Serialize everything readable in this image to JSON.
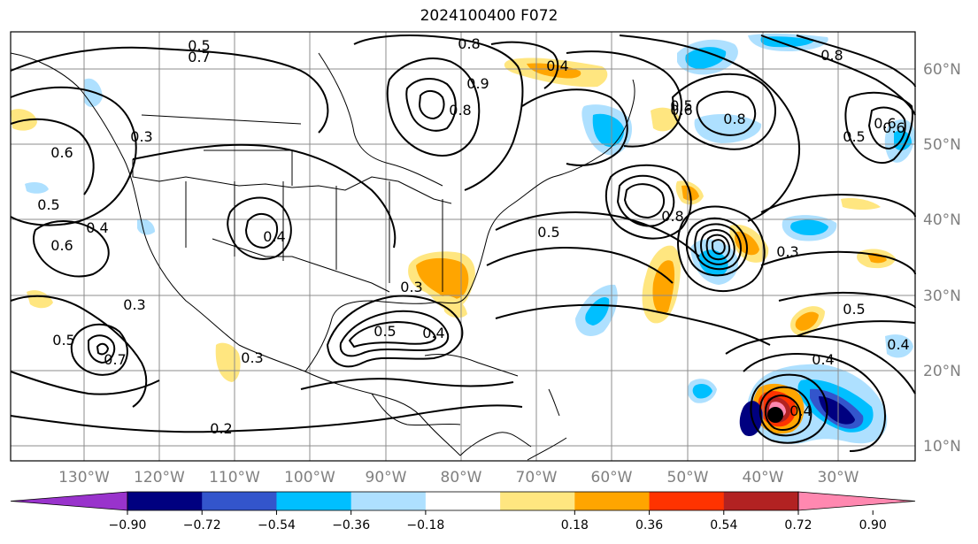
{
  "title": "2024100400 F072",
  "lon_labels": [
    "130°W",
    "120°W",
    "110°W",
    "100°W",
    "90°W",
    "80°W",
    "70°W",
    "60°W",
    "50°W",
    "40°W",
    "30°W"
  ],
  "lat_labels": [
    "60°N",
    "50°N",
    "40°N",
    "30°N",
    "20°N",
    "10°N"
  ],
  "colorbar": {
    "ticks": [
      "−0.90",
      "−0.72",
      "−0.54",
      "−0.36",
      "−0.18",
      "0.18",
      "0.36",
      "0.54",
      "0.72",
      "0.90"
    ],
    "colors": [
      "#9933cc",
      "#000080",
      "#3355cc",
      "#00bfff",
      "#aee0ff",
      "#ffffff",
      "#ffe680",
      "#ffa500",
      "#ff3300",
      "#b22222",
      "#ff88b0"
    ]
  },
  "contour_labels": [
    "0.5",
    "0.7",
    "0.3",
    "0.4",
    "0.6",
    "0.5",
    "0.6",
    "0.4",
    "0.3",
    "0.8",
    "0.8",
    "0.4",
    "0.9",
    "0.5",
    "0.8",
    "0.6",
    "0.5",
    "0.8",
    "0.4",
    "0.6",
    "0.8",
    "0.3",
    "0.5",
    "0.5",
    "0.4",
    "0.7",
    "0.3",
    "0.2",
    "0.5",
    "0.4",
    "0.3",
    "0.5",
    "0.4",
    "0.6"
  ]
}
